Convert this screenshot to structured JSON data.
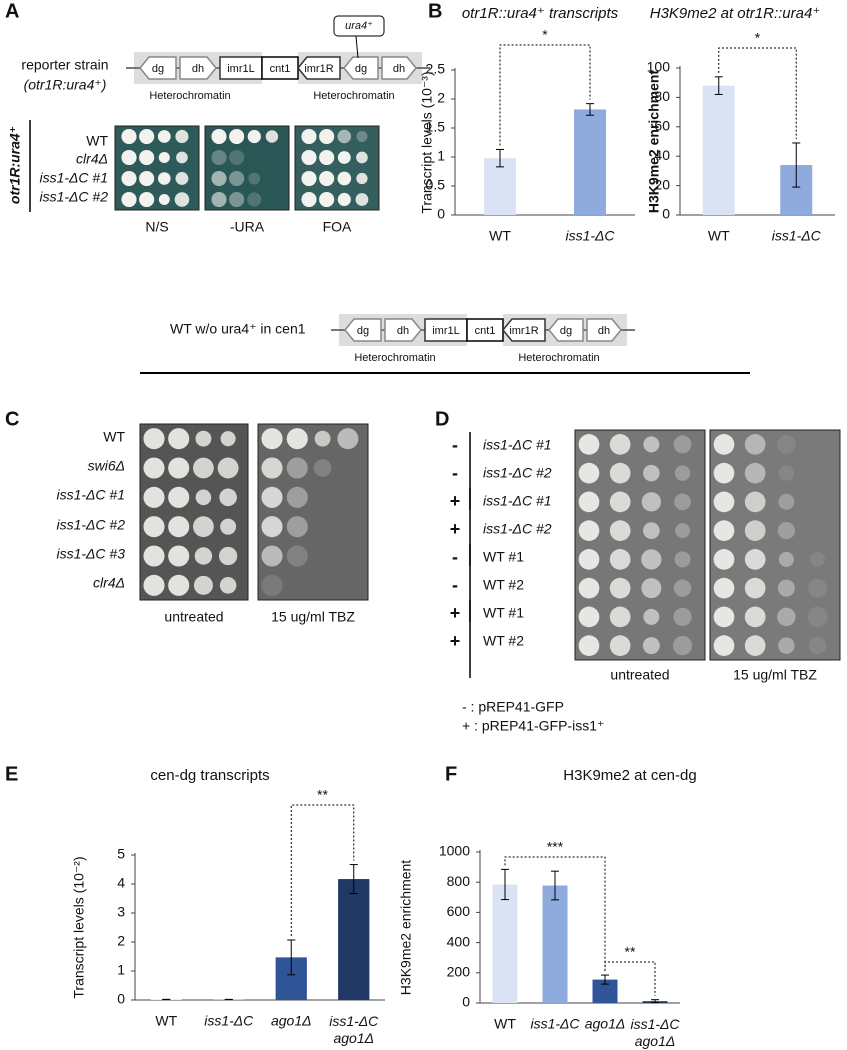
{
  "panel_labels": [
    "A",
    "B",
    "C",
    "D",
    "E",
    "F"
  ],
  "panel_a": {
    "reporter_label": "reporter strain",
    "reporter_strain": "(otr1R:ura4⁺)",
    "diagram": {
      "elements": [
        "dg",
        "dh",
        "imr1L",
        "cnt1",
        "imr1R",
        "dg",
        "dh"
      ],
      "insert": "ura4⁺",
      "regions": [
        "Heterochromatin",
        "Heterochromatin"
      ]
    },
    "side_label": "otr1R:ura4⁺",
    "strains": [
      "WT",
      "clr4Δ",
      "iss1-ΔC #1",
      "iss1-ΔC #2"
    ],
    "conditions": [
      "N/S",
      "-URA",
      "FOA"
    ]
  },
  "cen1_diagram": {
    "title": "WT w/o ura4⁺ in cen1",
    "elements": [
      "dg",
      "dh",
      "imr1L",
      "cnt1",
      "imr1R",
      "dg",
      "dh"
    ],
    "regions": [
      "Heterochromatin",
      "Heterochromatin"
    ]
  },
  "panel_c": {
    "strains": [
      "WT",
      "swi6Δ",
      "iss1-ΔC #1",
      "iss1-ΔC #2",
      "iss1-ΔC #3",
      "clr4Δ"
    ],
    "conditions": [
      "untreated",
      "15 ug/ml TBZ"
    ]
  },
  "panel_d": {
    "signs": [
      "-",
      "-",
      "+",
      "+",
      "-",
      "-",
      "+",
      "+"
    ],
    "strains": [
      "iss1-ΔC #1",
      "iss1-ΔC #2",
      "iss1-ΔC #1",
      "iss1-ΔC #2",
      "WT #1",
      "WT #2",
      "WT #1",
      "WT #2"
    ],
    "conditions": [
      "untreated",
      "15 ug/ml TBZ"
    ],
    "legend": [
      "- : pREP41-GFP",
      "+ : pREP41-GFP-iss1⁺"
    ]
  },
  "chart_data": [
    {
      "type": "bar",
      "title": "otr1R::ura4⁺ transcripts",
      "y_label": "Transcript levels (10⁻³)",
      "categories": [
        "WT",
        "iss1-ΔC"
      ],
      "values": [
        0.98,
        1.82
      ],
      "errors": [
        0.15,
        0.1
      ],
      "colors": [
        "#dae3f3",
        "#8faadc"
      ],
      "ylim": [
        0,
        2.5
      ],
      "yticks": [
        0,
        0.5,
        1,
        1.5,
        2,
        2.5
      ],
      "significance": [
        {
          "label": "*",
          "between": [
            "WT",
            "iss1-ΔC"
          ]
        }
      ]
    },
    {
      "type": "bar",
      "title": "H3K9me2 at otr1R::ura4⁺",
      "y_label": "H3K9me2 enrichment",
      "categories": [
        "WT",
        "iss1-ΔC"
      ],
      "values": [
        88,
        34
      ],
      "errors": [
        6,
        15
      ],
      "colors": [
        "#dae3f3",
        "#8faadc"
      ],
      "ylim": [
        0,
        100
      ],
      "yticks": [
        0,
        20,
        40,
        60,
        80,
        100
      ],
      "significance": [
        {
          "label": "*",
          "between": [
            "WT",
            "iss1-ΔC"
          ]
        }
      ]
    },
    {
      "type": "bar",
      "title": "cen-dg transcripts",
      "y_label": "Transcript levels (10⁻²)",
      "categories": [
        "WT",
        "iss1-ΔC",
        "ago1Δ",
        "iss1-ΔC\nago1Δ"
      ],
      "values": [
        0.02,
        0.02,
        1.47,
        4.17
      ],
      "errors": [
        0,
        0,
        0.6,
        0.5
      ],
      "colors": [
        "#dae3f3",
        "#8faadc",
        "#2f5597",
        "#1f3864"
      ],
      "ylim": [
        0,
        5
      ],
      "yticks": [
        0,
        1,
        2,
        3,
        4,
        5
      ],
      "significance": [
        {
          "label": "**",
          "between": [
            "ago1Δ",
            "iss1-ΔC\nago1Δ"
          ]
        }
      ]
    },
    {
      "type": "bar",
      "title": "H3K9me2 at cen-dg",
      "y_label": "H3K9me2 enrichment",
      "categories": [
        "WT",
        "iss1-ΔC",
        "ago1Δ",
        "iss1-ΔC\nago1Δ"
      ],
      "values": [
        785,
        778,
        155,
        12
      ],
      "errors": [
        100,
        95,
        30,
        10
      ],
      "colors": [
        "#dae3f3",
        "#8faadc",
        "#2f5597",
        "#1f3864"
      ],
      "ylim": [
        0,
        1000
      ],
      "yticks": [
        0,
        200,
        400,
        600,
        800,
        1000
      ],
      "significance": [
        {
          "label": "***",
          "between": [
            "WT",
            "ago1Δ"
          ]
        },
        {
          "label": "**",
          "between": [
            "ago1Δ",
            "iss1-ΔC\nago1Δ"
          ]
        }
      ]
    }
  ]
}
